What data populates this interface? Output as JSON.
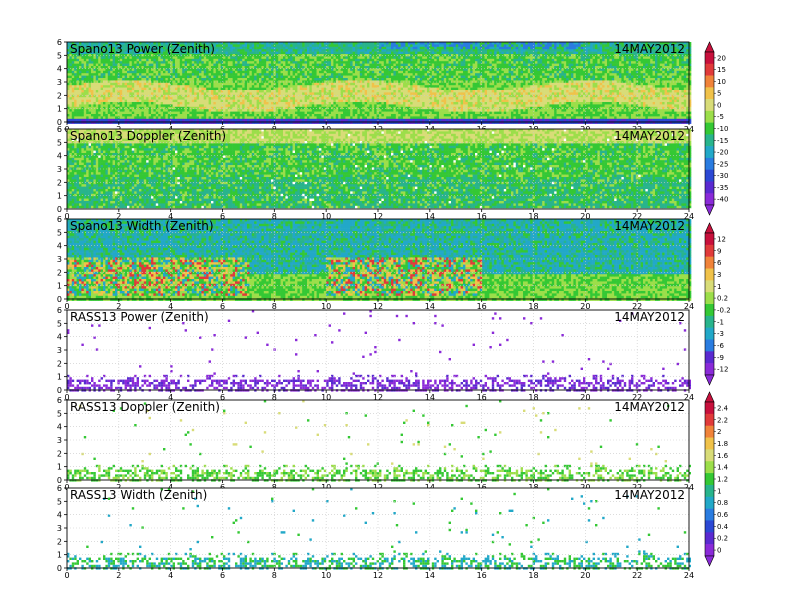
{
  "chart_data": [
    {
      "type": "heatmap",
      "title": "Spano13 Power (Zenith)",
      "date": "14MAY2012",
      "x_ticks": [
        "0",
        "2",
        "4",
        "6",
        "8",
        "10",
        "12",
        "14",
        "16",
        "18",
        "20",
        "22",
        "24"
      ],
      "y_ticks": [
        "0",
        "1",
        "2",
        "3",
        "4",
        "5",
        "6"
      ],
      "xlim": [
        0,
        24
      ],
      "ylim": [
        0,
        6
      ],
      "colorbar": {
        "labels": [
          "20",
          "15",
          "10",
          "5",
          "0",
          "-5",
          "-10",
          "-15",
          "-20",
          "-25",
          "-30",
          "-35",
          "-40"
        ],
        "colors": [
          "#c8103c",
          "#e03a3a",
          "#f0833a",
          "#f0c24a",
          "#d8dc78",
          "#9cde4a",
          "#34c834",
          "#28b48c",
          "#22a8c8",
          "#2a7ce0",
          "#2c48d4",
          "#5a2ad0",
          "#8a2ad8"
        ]
      },
      "mode": "dense_power"
    },
    {
      "type": "heatmap",
      "title": "Spano13 Doppler (Zenith)",
      "date": "14MAY2012",
      "x_ticks": [
        "0",
        "2",
        "4",
        "6",
        "8",
        "10",
        "12",
        "14",
        "16",
        "18",
        "20",
        "22",
        "24"
      ],
      "y_ticks": [
        "0",
        "1",
        "2",
        "3",
        "4",
        "5",
        "6"
      ],
      "xlim": [
        0,
        24
      ],
      "ylim": [
        0,
        6
      ],
      "mode": "dense_doppler"
    },
    {
      "type": "heatmap",
      "title": "Spano13 Width (Zenith)",
      "date": "14MAY2012",
      "x_ticks": [
        "0",
        "2",
        "4",
        "6",
        "8",
        "10",
        "12",
        "14",
        "16",
        "18",
        "20",
        "22",
        "24"
      ],
      "y_ticks": [
        "0",
        "1",
        "2",
        "3",
        "4",
        "5",
        "6"
      ],
      "xlim": [
        0,
        24
      ],
      "ylim": [
        0,
        6
      ],
      "colorbar": {
        "labels": [
          "12",
          "9",
          "6",
          "3",
          "1",
          "0.2",
          "-0.2",
          "-1",
          "-3",
          "-6",
          "-9",
          "-12"
        ],
        "colors": [
          "#c8103c",
          "#e03a3a",
          "#f0833a",
          "#f0c24a",
          "#d8dc78",
          "#9cde4a",
          "#34c834",
          "#28b48c",
          "#22a8c8",
          "#2a7ce0",
          "#5a2ad0",
          "#8a2ad8"
        ]
      },
      "mode": "dense_width"
    },
    {
      "type": "heatmap",
      "title": "RASS13 Power (Zenith)",
      "date": "14MAY2012",
      "x_ticks": [
        "0",
        "2",
        "4",
        "6",
        "8",
        "10",
        "12",
        "14",
        "16",
        "18",
        "20",
        "22",
        "24"
      ],
      "y_ticks": [
        "0",
        "1",
        "2",
        "3",
        "4",
        "5",
        "6"
      ],
      "xlim": [
        0,
        24
      ],
      "ylim": [
        0,
        6
      ],
      "mode": "sparse_power"
    },
    {
      "type": "heatmap",
      "title": "RASS13 Doppler (Zenith)",
      "date": "14MAY2012",
      "x_ticks": [
        "0",
        "2",
        "4",
        "6",
        "8",
        "10",
        "12",
        "14",
        "16",
        "18",
        "20",
        "22",
        "24"
      ],
      "y_ticks": [
        "0",
        "1",
        "2",
        "3",
        "4",
        "5",
        "6"
      ],
      "xlim": [
        0,
        24
      ],
      "ylim": [
        0,
        6
      ],
      "colorbar": {
        "labels": [
          "2.4",
          "2.2",
          "2",
          "1.8",
          "1.6",
          "1.4",
          "1.2",
          "1",
          "0.8",
          "0.6",
          "0.4",
          "0.2",
          "0"
        ],
        "colors": [
          "#c8103c",
          "#e03a3a",
          "#f0833a",
          "#f0c24a",
          "#d8dc78",
          "#9cde4a",
          "#34c834",
          "#28b48c",
          "#22a8c8",
          "#2a7ce0",
          "#2c48d4",
          "#5a2ad0",
          "#8a2ad8"
        ]
      },
      "mode": "sparse_doppler"
    },
    {
      "type": "heatmap",
      "title": "RASS13 Width (Zenith)",
      "date": "14MAY2012",
      "x_ticks": [
        "0",
        "2",
        "4",
        "6",
        "8",
        "10",
        "12",
        "14",
        "16",
        "18",
        "20",
        "22",
        "24"
      ],
      "y_ticks": [
        "0",
        "1",
        "2",
        "3",
        "4",
        "5",
        "6"
      ],
      "xlim": [
        0,
        24
      ],
      "ylim": [
        0,
        6
      ],
      "mode": "sparse_width"
    }
  ]
}
